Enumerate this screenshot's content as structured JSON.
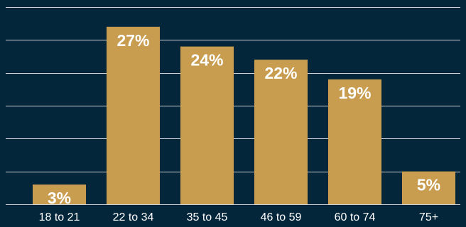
{
  "chart_data": {
    "type": "bar",
    "title": "",
    "xlabel": "",
    "ylabel": "",
    "categories": [
      "18 to 21",
      "22 to 34",
      "35 to 45",
      "46 to 59",
      "60 to 74",
      "75+"
    ],
    "values": [
      3,
      27,
      24,
      22,
      19,
      5
    ],
    "value_labels": [
      "3%",
      "27%",
      "24%",
      "22%",
      "19%",
      "5%"
    ],
    "ylim": [
      0,
      30
    ],
    "grid": true,
    "legend": "none",
    "colors": {
      "background": "#04263b",
      "bar": "#c89d50",
      "grid": "#d9dee3",
      "text": "#ffffff"
    }
  }
}
